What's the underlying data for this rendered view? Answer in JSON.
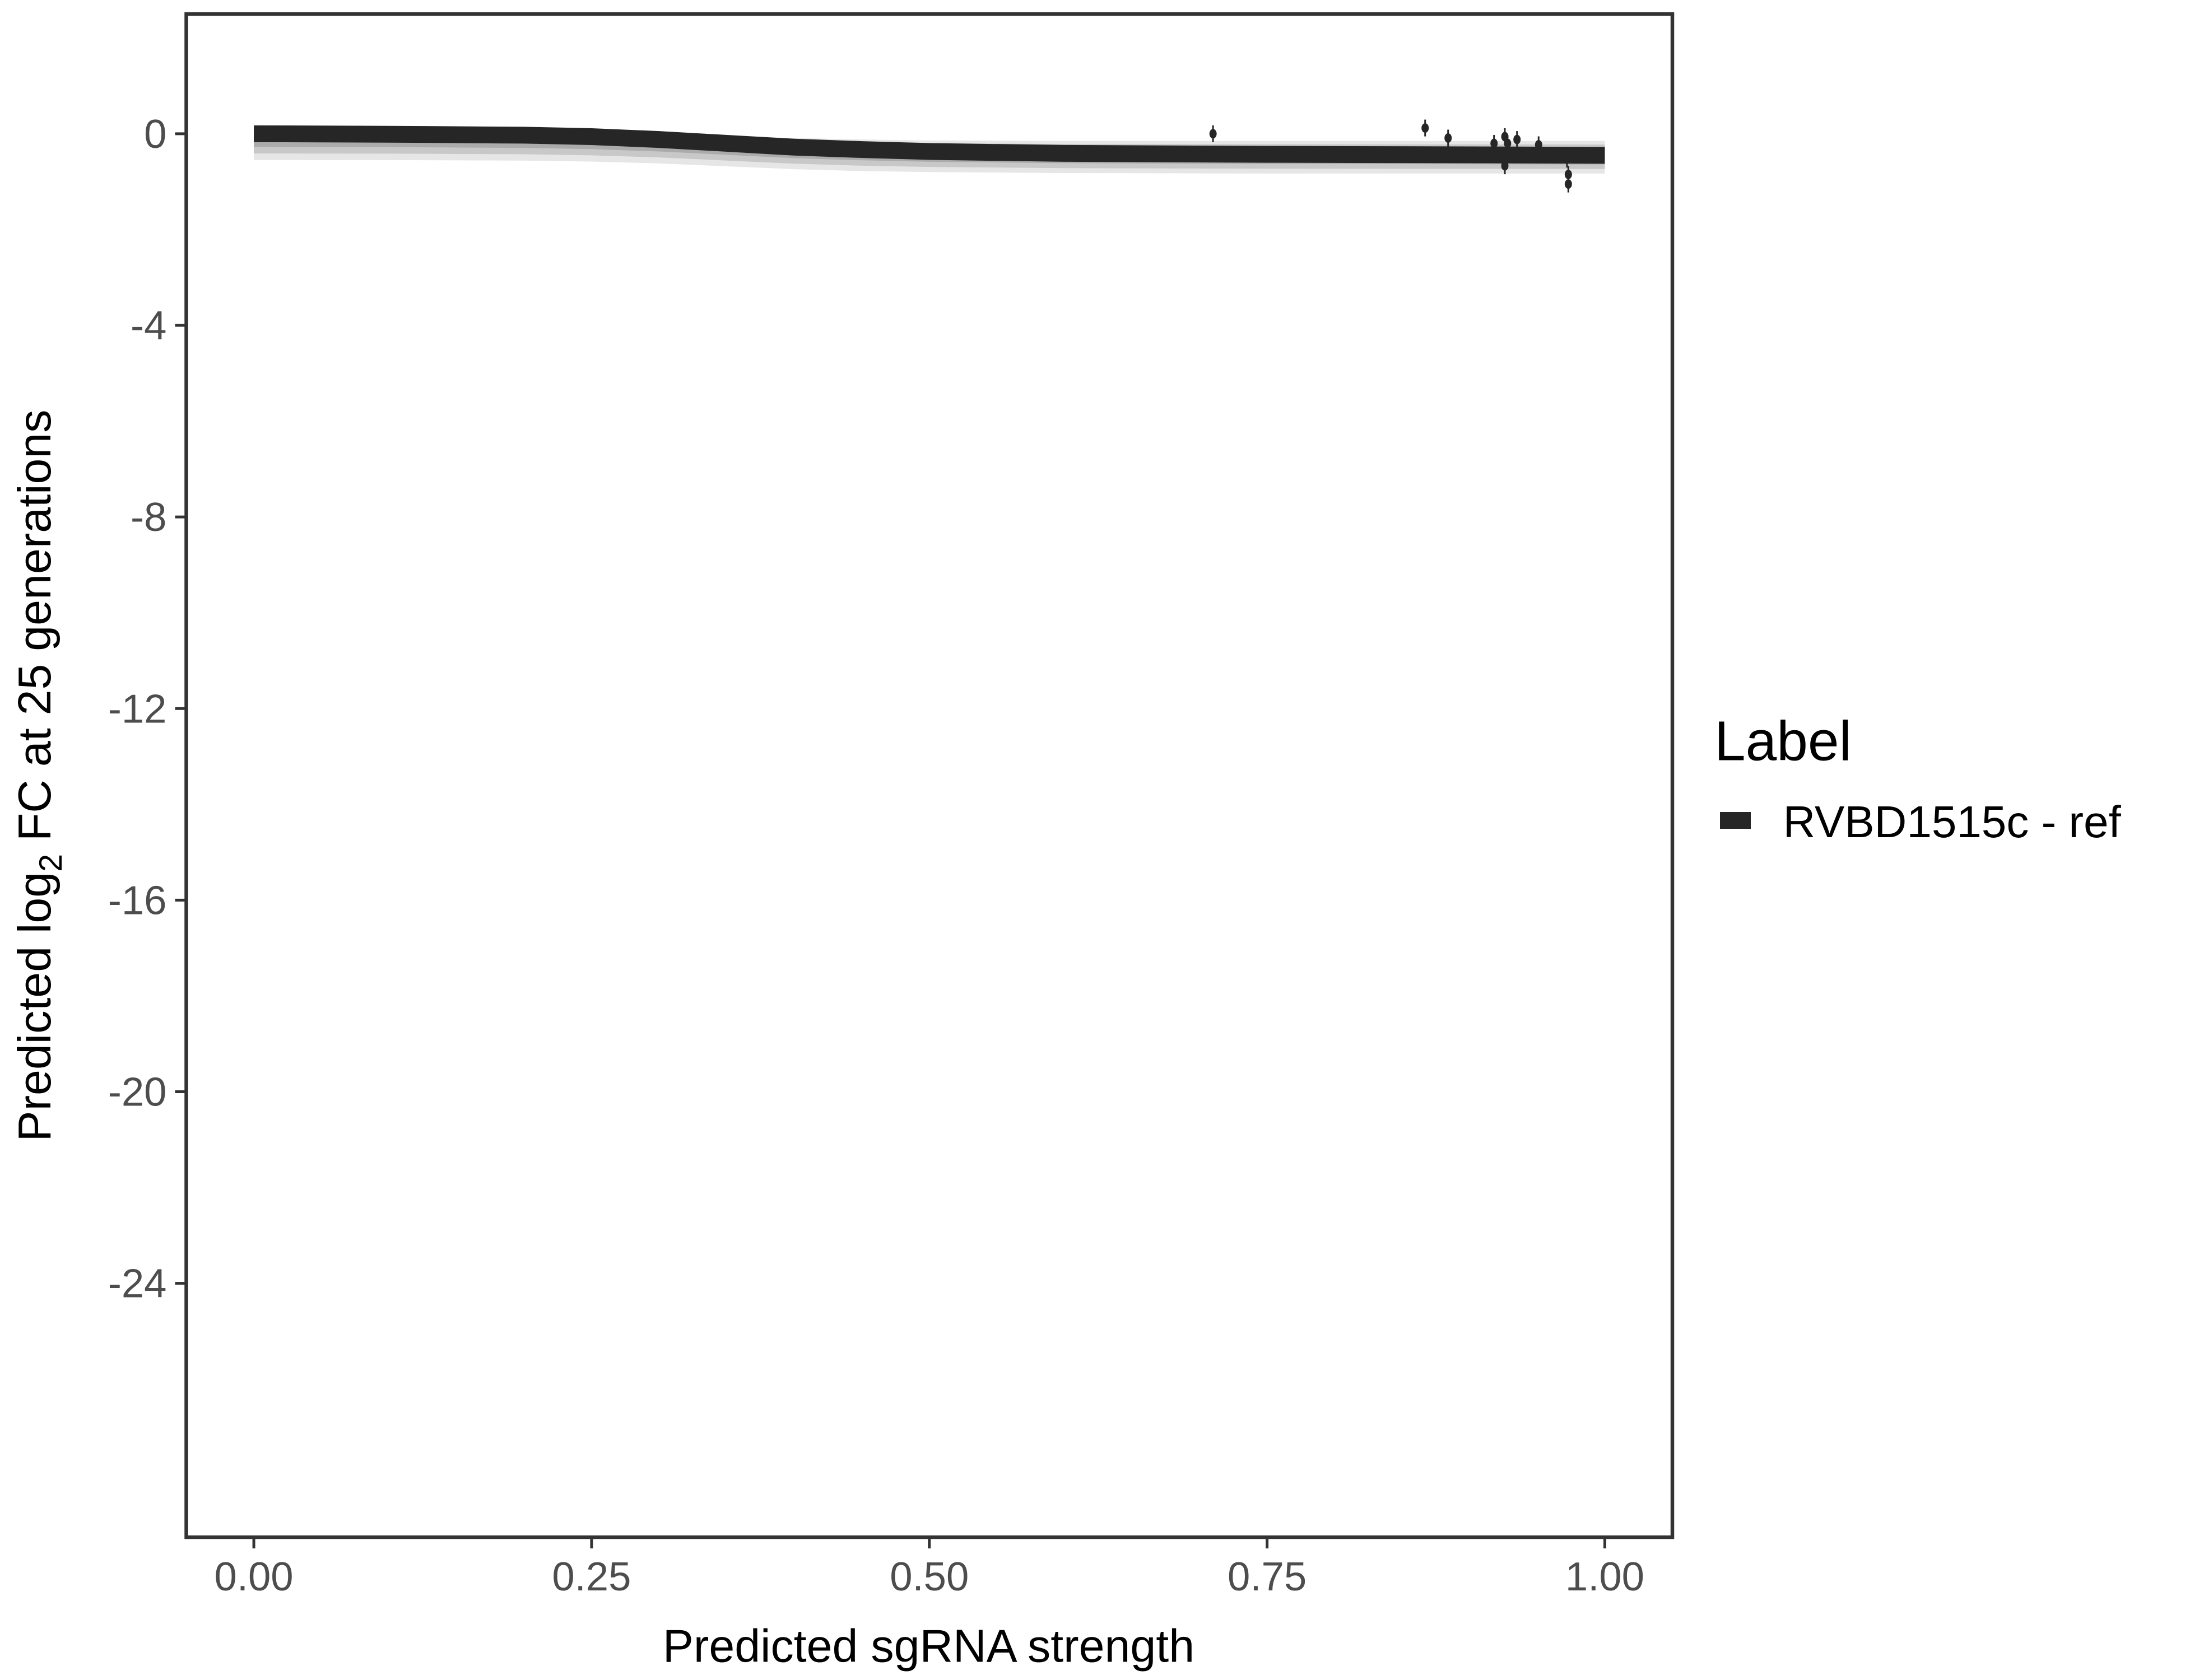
{
  "chart_data": {
    "type": "line",
    "xlabel": "Predicted sgRNA strength",
    "ylabel_parts": {
      "before": "Predicted  log",
      "subscript": "2",
      "after": " FC at 25 generations"
    },
    "xlim": [
      -0.05,
      1.05
    ],
    "ylim": [
      -29.3,
      2.5
    ],
    "x_ticks": [
      0.0,
      0.25,
      0.5,
      0.75,
      1.0
    ],
    "x_tick_labels": [
      "0.00",
      "0.25",
      "0.50",
      "0.75",
      "1.00"
    ],
    "y_ticks": [
      0,
      -4,
      -8,
      -12,
      -16,
      -20,
      -24
    ],
    "y_tick_labels": [
      "0",
      "-4",
      "-8",
      "-12",
      "-16",
      "-20",
      "-24"
    ],
    "grid": false,
    "legend": {
      "title": "Label",
      "position": "right",
      "entries": [
        {
          "label": "RVBD1515c - ref",
          "color": "#262626"
        }
      ]
    },
    "series": [
      {
        "name": "RVBD1515c - ref",
        "color": "#262626",
        "fit": {
          "x": [
            0,
            0.1,
            0.2,
            0.25,
            0.3,
            0.35,
            0.4,
            0.45,
            0.5,
            0.6,
            0.75,
            0.9,
            1.0
          ],
          "y": [
            0,
            -0.01,
            -0.03,
            -0.06,
            -0.12,
            -0.2,
            -0.28,
            -0.33,
            -0.37,
            -0.41,
            -0.43,
            -0.44,
            -0.45
          ],
          "lower": [
            -0.55,
            -0.55,
            -0.56,
            -0.58,
            -0.62,
            -0.68,
            -0.74,
            -0.78,
            -0.8,
            -0.82,
            -0.83,
            -0.83,
            -0.83
          ],
          "upper": [
            0.05,
            0.05,
            0.04,
            0.02,
            -0.01,
            -0.05,
            -0.09,
            -0.12,
            -0.14,
            -0.15,
            -0.15,
            -0.15,
            -0.15
          ]
        },
        "points": {
          "x": [
            0.71,
            0.867,
            0.884,
            0.918,
            0.926,
            0.928,
            0.935,
            0.951,
            0.926,
            0.972,
            0.973,
            0.973
          ],
          "y": [
            0.0,
            0.12,
            -0.09,
            -0.2,
            -0.06,
            -0.2,
            -0.12,
            -0.23,
            -0.67,
            -0.53,
            -0.85,
            -1.05
          ]
        }
      }
    ]
  }
}
